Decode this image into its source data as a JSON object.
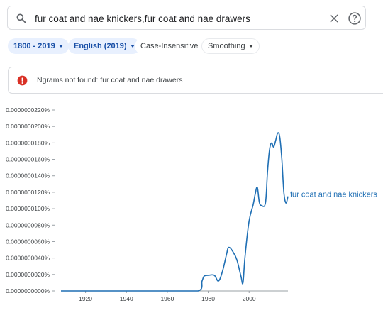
{
  "search": {
    "query": "fur coat and nae knickers,fur coat and nae drawers"
  },
  "icons": {
    "search": "search-icon",
    "clear": "close-icon",
    "help": "help-icon",
    "alert": "error-icon"
  },
  "filters": {
    "year_range": "1800 - 2019",
    "corpus": "English (2019)",
    "case": "Case-Insensitive",
    "smoothing": "Smoothing"
  },
  "alert": {
    "message": "Ngrams not found: fur coat and nae drawers"
  },
  "colors": {
    "series": "#1f6fb4",
    "alert_icon": "#d93025",
    "chip_active_bg": "#e8f0fe"
  },
  "chart_data": {
    "type": "line",
    "grid": false,
    "xlim": [
      1908,
      2019
    ],
    "ylim": [
      0,
      2.2e-08
    ],
    "x_ticks": [
      1920,
      1940,
      1960,
      1980,
      2000
    ],
    "y_ticks": [
      {
        "value": 0,
        "label": "0.0000000000%"
      },
      {
        "value": 2e-09,
        "label": "0.0000000020%"
      },
      {
        "value": 4e-09,
        "label": "0.0000000040%"
      },
      {
        "value": 6e-09,
        "label": "0.0000000060%"
      },
      {
        "value": 8e-09,
        "label": "0.0000000080%"
      },
      {
        "value": 1e-08,
        "label": "0.0000000100%"
      },
      {
        "value": 1.2e-08,
        "label": "0.0000000120%"
      },
      {
        "value": 1.4e-08,
        "label": "0.0000000140%"
      },
      {
        "value": 1.6e-08,
        "label": "0.0000000160%"
      },
      {
        "value": 1.8e-08,
        "label": "0.0000000180%"
      },
      {
        "value": 2e-08,
        "label": "0.0000000200%"
      },
      {
        "value": 2.2e-08,
        "label": "0.0000000220%"
      }
    ],
    "series": [
      {
        "name": "fur coat and nae knickers",
        "x": [
          1908,
          1920,
          1940,
          1960,
          1975,
          1977,
          1978,
          1980,
          1983,
          1985,
          1987,
          1989,
          1990,
          1992,
          1994,
          1996,
          1997,
          1998,
          2000,
          2002,
          2003,
          2004,
          2005,
          2006,
          2008,
          2009,
          2010,
          2011,
          2012,
          2013,
          2014,
          2015,
          2016,
          2017,
          2018,
          2019
        ],
        "y": [
          0,
          0,
          0,
          0,
          0,
          1.2e-09,
          1.8e-09,
          1.9e-09,
          1.9e-09,
          1.2e-09,
          2.4e-09,
          4.5e-09,
          5.3e-09,
          4.8e-09,
          3.8e-09,
          1.8e-09,
          1e-09,
          4.2e-09,
          8.5e-09,
          1.05e-08,
          1.18e-08,
          1.26e-08,
          1.08e-08,
          1.04e-08,
          1.07e-08,
          1.45e-08,
          1.72e-08,
          1.8e-08,
          1.75e-08,
          1.83e-08,
          1.92e-08,
          1.87e-08,
          1.6e-08,
          1.2e-08,
          1.07e-08,
          1.15e-08
        ]
      }
    ]
  }
}
